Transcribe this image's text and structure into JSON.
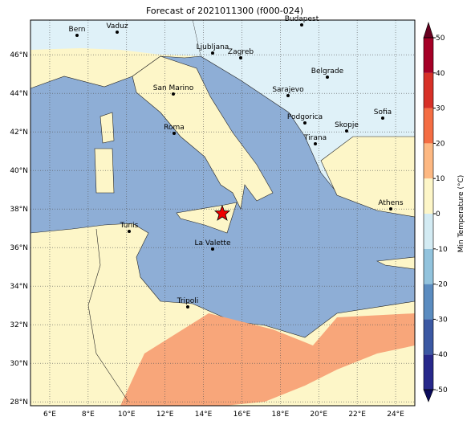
{
  "chart_data": {
    "type": "map",
    "title": "Forecast of 2021011300 (f000-024)",
    "xlim": [
      5.0,
      25.0
    ],
    "xticks": [
      {
        "value": 6,
        "label": "6°E"
      },
      {
        "value": 8,
        "label": "8°E"
      },
      {
        "value": 10,
        "label": "10°E"
      },
      {
        "value": 12,
        "label": "12°E"
      },
      {
        "value": 14,
        "label": "14°E"
      },
      {
        "value": 16,
        "label": "16°E"
      },
      {
        "value": 18,
        "label": "18°E"
      },
      {
        "value": 20,
        "label": "20°E"
      },
      {
        "value": 22,
        "label": "22°E"
      },
      {
        "value": 24,
        "label": "24°E"
      }
    ],
    "ylim": [
      27.8,
      47.8
    ],
    "yticks": [
      {
        "value": 28,
        "label": "28°N"
      },
      {
        "value": 30,
        "label": "30°N"
      },
      {
        "value": 32,
        "label": "32°N"
      },
      {
        "value": 34,
        "label": "34°N"
      },
      {
        "value": 36,
        "label": "36°N"
      },
      {
        "value": 38,
        "label": "38°N"
      },
      {
        "value": 40,
        "label": "40°N"
      },
      {
        "value": 42,
        "label": "42°N"
      },
      {
        "value": 44,
        "label": "44°N"
      },
      {
        "value": 46,
        "label": "46°N"
      }
    ],
    "grid": true,
    "cities": [
      "Bern",
      "Vaduz",
      "Budapest",
      "Ljubljana",
      "Zagreb",
      "Belgrade",
      "San Marino",
      "Sarajevo",
      "Sofia",
      "Podgorica",
      "Skopje",
      "Roma",
      "Tirana",
      "Athens",
      "Tunis",
      "La Valette",
      "Tripoli"
    ],
    "colorbar": {
      "label": "Min Temperature (°C)",
      "lim": [
        -50,
        50
      ],
      "ticks": [
        -50,
        -40,
        -30,
        -20,
        -10,
        0,
        10,
        20,
        30,
        40,
        50
      ],
      "colors": [
        "#27288b",
        "#3b58a3",
        "#5b8cc0",
        "#92c3dd",
        "#d3ebf3",
        "#fdf6c8",
        "#fdb882",
        "#f46d43",
        "#d73027",
        "#a50026"
      ],
      "under": "#0b0b5c",
      "over": "#67001f"
    }
  }
}
